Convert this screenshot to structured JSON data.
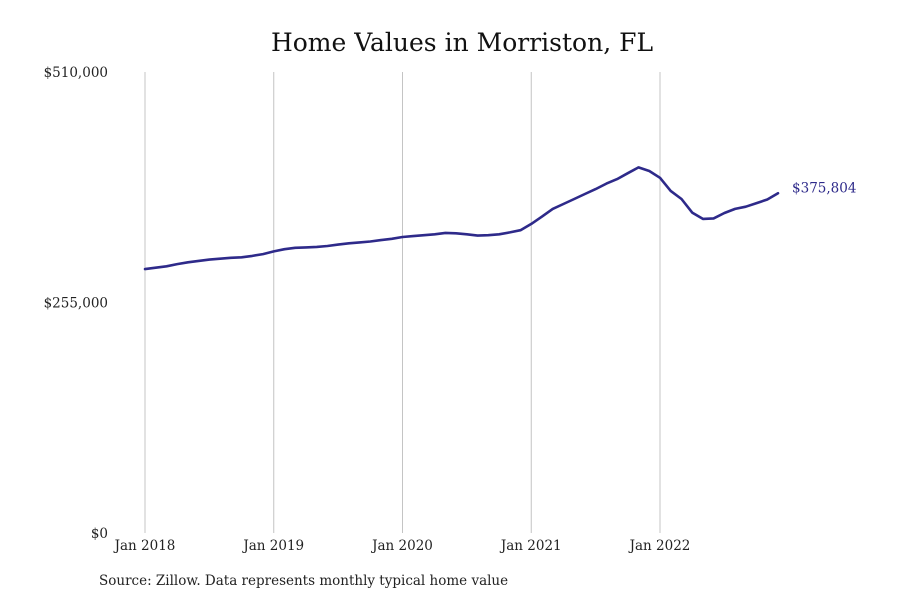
{
  "chart_data": {
    "type": "line",
    "title": "Home Values in Morriston, FL",
    "source": "Source: Zillow. Data represents monthly typical home value",
    "ylim": [
      0,
      510000
    ],
    "y_ticks": [
      {
        "value": 0,
        "label": "$0"
      },
      {
        "value": 255000,
        "label": "$255,000"
      },
      {
        "value": 510000,
        "label": "$510,000"
      }
    ],
    "x_ticks": [
      {
        "value": "2018-01",
        "label": "Jan 2018"
      },
      {
        "value": "2019-01",
        "label": "Jan 2019"
      },
      {
        "value": "2020-01",
        "label": "Jan 2020"
      },
      {
        "value": "2021-01",
        "label": "Jan 2021"
      },
      {
        "value": "2022-01",
        "label": "Jan 2022"
      }
    ],
    "grid": "vertical",
    "line_color": "#2e2a8a",
    "end_label": "$375,804",
    "series": [
      {
        "x": [
          "2018-01",
          "2018-02",
          "2018-03",
          "2018-04",
          "2018-05",
          "2018-06",
          "2018-07",
          "2018-08",
          "2018-09",
          "2018-10",
          "2018-11",
          "2018-12",
          "2019-01",
          "2019-02",
          "2019-03",
          "2019-04",
          "2019-05",
          "2019-06",
          "2019-07",
          "2019-08",
          "2019-09",
          "2019-10",
          "2019-11",
          "2019-12",
          "2020-01",
          "2020-02",
          "2020-03",
          "2020-04",
          "2020-05",
          "2020-06",
          "2020-07",
          "2020-08",
          "2020-09",
          "2020-10",
          "2020-11",
          "2020-12",
          "2021-01",
          "2021-02",
          "2021-03",
          "2021-04",
          "2021-05",
          "2021-06",
          "2021-07",
          "2021-08",
          "2021-09",
          "2021-10",
          "2021-11",
          "2021-12",
          "2022-01",
          "2022-02",
          "2022-03",
          "2022-04",
          "2022-05",
          "2022-06",
          "2022-07",
          "2022-08",
          "2022-09",
          "2022-10",
          "2022-11",
          "2022-12"
        ],
        "values": [
          292000,
          293500,
          295000,
          297500,
          299500,
          301000,
          302500,
          303500,
          304500,
          305000,
          306500,
          308500,
          311500,
          314000,
          315500,
          316000,
          316500,
          317500,
          319000,
          320500,
          321500,
          322500,
          324000,
          325500,
          327500,
          328500,
          329500,
          330500,
          332000,
          331500,
          330500,
          329000,
          329500,
          330500,
          332500,
          335000,
          342000,
          350000,
          358500,
          364000,
          369500,
          375000,
          380500,
          386500,
          391500,
          398000,
          404500,
          400500,
          393000,
          378500,
          369500,
          354500,
          347500,
          348000,
          354000,
          358500,
          361000,
          365000,
          369000,
          375804
        ]
      }
    ]
  }
}
